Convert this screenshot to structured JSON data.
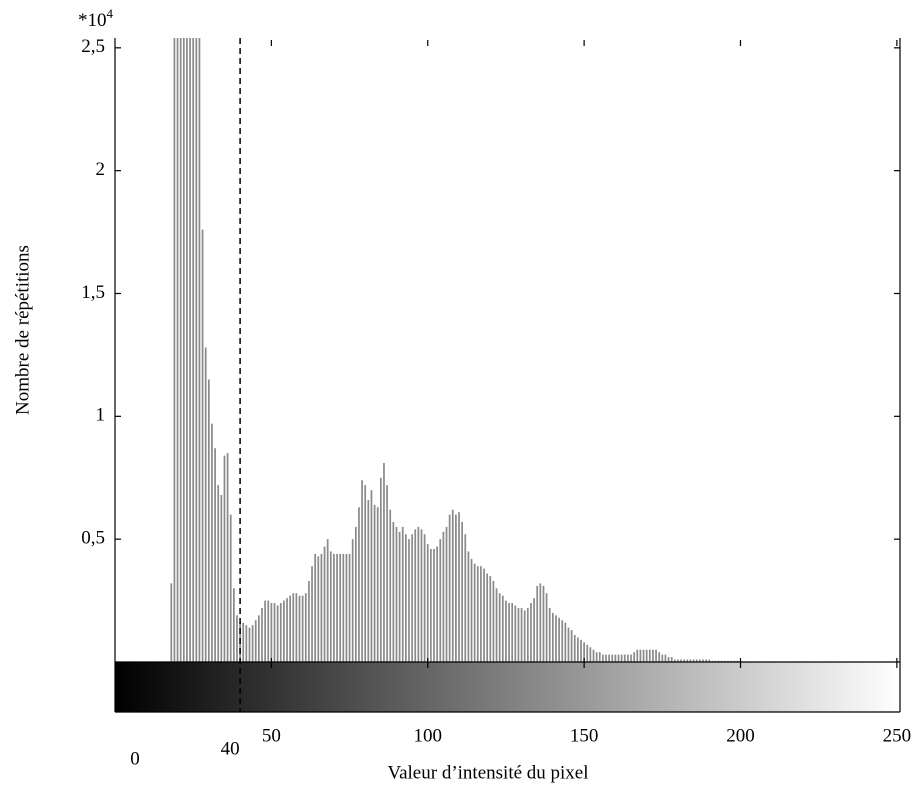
{
  "chart_data": {
    "type": "bar",
    "x_label": "Valeur d’intensité du pixel",
    "y_label": "Nombre de répétitions",
    "multiplier": "*10",
    "multiplier_exponent": "4",
    "color": "#8a8a8a",
    "xlim": [
      0,
      251
    ],
    "ylim": [
      0,
      2.54
    ],
    "xticks": [
      0,
      50,
      100,
      150,
      200,
      250
    ],
    "yticks": [
      {
        "value": 0.5,
        "label": "0,5"
      },
      1,
      {
        "value": 1.5,
        "label": "1,5"
      },
      2,
      {
        "value": 2.5,
        "label": "2,5"
      }
    ],
    "threshold": 40,
    "x": [
      18,
      19,
      20,
      21,
      22,
      23,
      24,
      25,
      26,
      27,
      28,
      29,
      30,
      31,
      32,
      33,
      34,
      35,
      36,
      37,
      38,
      39,
      40,
      41,
      42,
      43,
      44,
      45,
      46,
      47,
      48,
      49,
      50,
      51,
      52,
      53,
      54,
      55,
      56,
      57,
      58,
      59,
      60,
      61,
      62,
      63,
      64,
      65,
      66,
      67,
      68,
      69,
      70,
      71,
      72,
      73,
      74,
      75,
      76,
      77,
      78,
      79,
      80,
      81,
      82,
      83,
      84,
      85,
      86,
      87,
      88,
      89,
      90,
      91,
      92,
      93,
      94,
      95,
      96,
      97,
      98,
      99,
      100,
      101,
      102,
      103,
      104,
      105,
      106,
      107,
      108,
      109,
      110,
      111,
      112,
      113,
      114,
      115,
      116,
      117,
      118,
      119,
      120,
      121,
      122,
      123,
      124,
      125,
      126,
      127,
      128,
      129,
      130,
      131,
      132,
      133,
      134,
      135,
      136,
      137,
      138,
      139,
      140,
      141,
      142,
      143,
      144,
      145,
      146,
      147,
      148,
      149,
      150,
      151,
      152,
      153,
      154,
      155,
      156,
      157,
      158,
      159,
      160,
      161,
      162,
      163,
      164,
      165,
      166,
      167,
      168,
      169,
      170,
      171,
      172,
      173,
      174,
      175,
      176,
      177,
      178,
      179,
      180,
      181,
      182,
      183,
      184,
      185,
      186,
      187,
      188,
      189,
      190,
      191,
      192,
      193,
      194,
      195,
      196,
      197,
      198,
      199,
      200
    ],
    "values": [
      0.32,
      2.6,
      2.6,
      2.6,
      2.6,
      2.6,
      2.6,
      2.6,
      2.6,
      2.6,
      1.76,
      1.28,
      1.15,
      0.97,
      0.87,
      0.72,
      0.68,
      0.84,
      0.85,
      0.6,
      0.3,
      0.19,
      0.16,
      0.16,
      0.15,
      0.14,
      0.15,
      0.17,
      0.19,
      0.22,
      0.25,
      0.25,
      0.24,
      0.24,
      0.23,
      0.24,
      0.25,
      0.26,
      0.27,
      0.28,
      0.28,
      0.27,
      0.27,
      0.28,
      0.33,
      0.39,
      0.44,
      0.43,
      0.44,
      0.47,
      0.5,
      0.45,
      0.44,
      0.44,
      0.44,
      0.44,
      0.44,
      0.44,
      0.5,
      0.55,
      0.63,
      0.74,
      0.72,
      0.66,
      0.7,
      0.64,
      0.63,
      0.75,
      0.81,
      0.72,
      0.62,
      0.57,
      0.55,
      0.53,
      0.55,
      0.52,
      0.5,
      0.52,
      0.54,
      0.55,
      0.54,
      0.52,
      0.48,
      0.46,
      0.46,
      0.47,
      0.5,
      0.53,
      0.55,
      0.6,
      0.62,
      0.6,
      0.61,
      0.57,
      0.52,
      0.45,
      0.42,
      0.4,
      0.39,
      0.39,
      0.38,
      0.36,
      0.35,
      0.33,
      0.3,
      0.28,
      0.27,
      0.25,
      0.24,
      0.24,
      0.23,
      0.22,
      0.22,
      0.21,
      0.22,
      0.24,
      0.26,
      0.31,
      0.32,
      0.31,
      0.28,
      0.22,
      0.2,
      0.19,
      0.18,
      0.17,
      0.16,
      0.14,
      0.13,
      0.11,
      0.1,
      0.09,
      0.08,
      0.07,
      0.06,
      0.05,
      0.04,
      0.04,
      0.03,
      0.03,
      0.03,
      0.03,
      0.03,
      0.03,
      0.03,
      0.03,
      0.03,
      0.03,
      0.04,
      0.05,
      0.05,
      0.05,
      0.05,
      0.05,
      0.05,
      0.05,
      0.04,
      0.03,
      0.03,
      0.02,
      0.02,
      0.01,
      0.01,
      0.01,
      0.01,
      0.01,
      0.01,
      0.01,
      0.01,
      0.01,
      0.01,
      0.01,
      0.01,
      0.005,
      0.005,
      0.005,
      0.005,
      0.005,
      0.005,
      0.005,
      0.005,
      0.005,
      0.005
    ]
  }
}
